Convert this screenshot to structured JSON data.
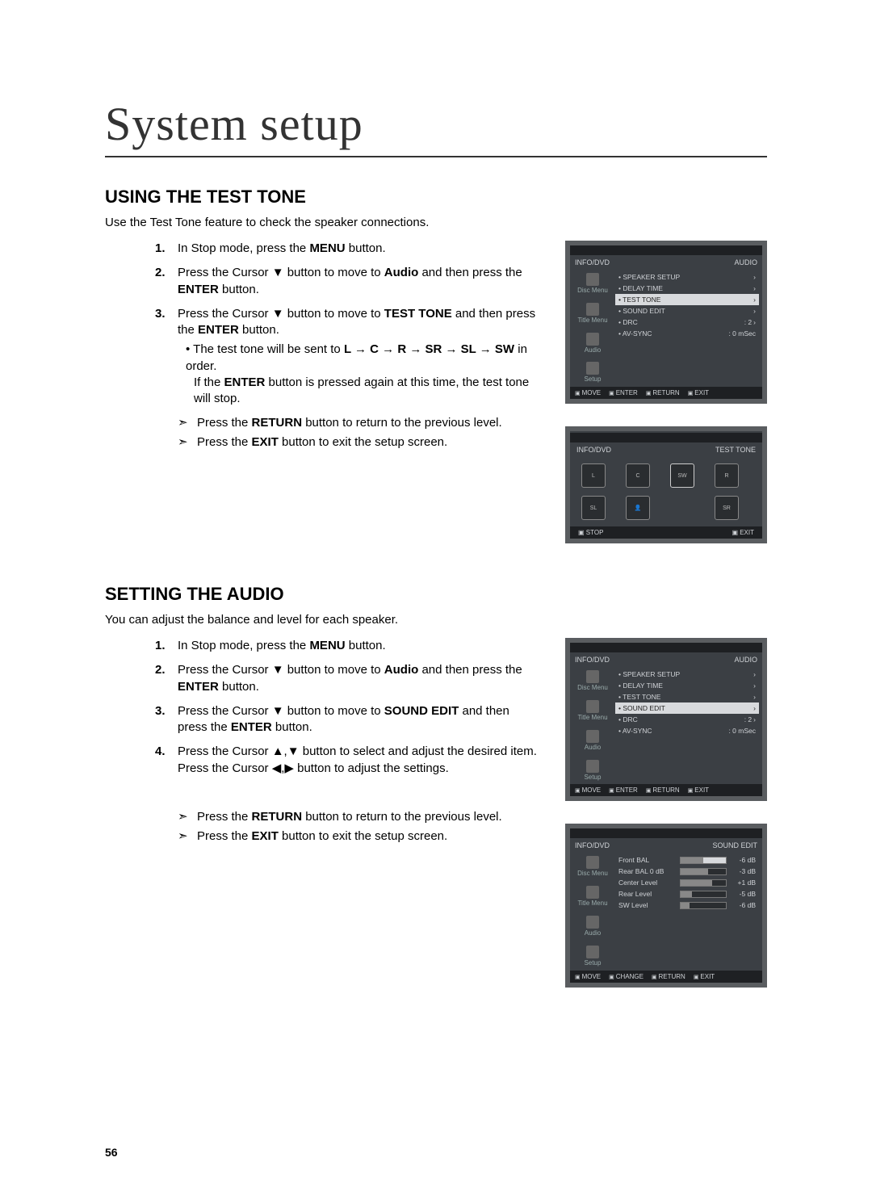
{
  "page": {
    "title": "System setup",
    "number": "56"
  },
  "section1": {
    "heading": "USING THE TEST TONE",
    "lead": "Use the Test Tone feature to check the speaker connections.",
    "steps": {
      "s1_a": "In Stop mode, press the ",
      "s1_b": "MENU",
      "s1_c": " button.",
      "s2_a": "Press the Cursor ▼ button to move to ",
      "s2_b": "Audio",
      "s2_c": " and then press the ",
      "s2_d": "ENTER",
      "s2_e": " button.",
      "s3_a": "Press the Cursor ▼ button to move to ",
      "s3_b": "TEST TONE",
      "s3_c": " and then press the ",
      "s3_d": "ENTER",
      "s3_e": " button.",
      "sub_a": "The test tone will be sent to ",
      "sub_b": "L → C → R → SR → SL → SW",
      "sub_c": " in order.",
      "sub2_a": "If the ",
      "sub2_b": "ENTER",
      "sub2_c": " button is pressed again at this time, the test tone will stop."
    },
    "notes": {
      "n1_a": "Press the ",
      "n1_b": "RETURN",
      "n1_c": " button to return to the previous level.",
      "n2_a": "Press the ",
      "n2_b": "EXIT",
      "n2_c": " button to exit the setup screen."
    }
  },
  "section2": {
    "heading": "SETTING THE AUDIO",
    "lead": "You can adjust the balance and level for each speaker.",
    "steps": {
      "s1_a": "In Stop mode, press the ",
      "s1_b": "MENU",
      "s1_c": " button.",
      "s2_a": "Press the Cursor ▼ button to move to ",
      "s2_b": "Audio",
      "s2_c": " and then press the ",
      "s2_d": "ENTER",
      "s2_e": " button.",
      "s3_a": "Press the Cursor ▼ button to move to ",
      "s3_b": "SOUND EDIT",
      "s3_c": " and then press the ",
      "s3_d": "ENTER",
      "s3_e": " button.",
      "s4": "Press the Cursor ▲,▼ button to select and adjust the desired item. Press the Cursor ◀,▶ button to adjust the settings."
    },
    "notes": {
      "n1_a": "Press the ",
      "n1_b": "RETURN",
      "n1_c": " button to return to the previous level.",
      "n2_a": "Press the ",
      "n2_b": "EXIT",
      "n2_c": " button to exit the setup screen."
    }
  },
  "menu1": {
    "info": "INFO/DVD",
    "audio": "AUDIO",
    "side": [
      "Disc Menu",
      "Title Menu",
      "Audio",
      "Setup"
    ],
    "rows": [
      {
        "label": "• SPEAKER SETUP",
        "val": "",
        "hi": false,
        "arrow": true
      },
      {
        "label": "• DELAY TIME",
        "val": "",
        "hi": false,
        "arrow": true
      },
      {
        "label": "• TEST TONE",
        "val": "",
        "hi": true,
        "arrow": true
      },
      {
        "label": "• SOUND EDIT",
        "val": "",
        "hi": false,
        "arrow": true
      },
      {
        "label": "• DRC",
        "val": ": 2",
        "hi": false,
        "arrow": true
      },
      {
        "label": "• AV-SYNC",
        "val": ": 0 mSec",
        "hi": false,
        "arrow": false
      }
    ],
    "foot": [
      "MOVE",
      "ENTER",
      "RETURN",
      "EXIT"
    ]
  },
  "tone": {
    "info": "INFO/DVD",
    "label": "TEST TONE",
    "foot_stop": "STOP",
    "foot_exit": "EXIT"
  },
  "menu2": {
    "info": "INFO/DVD",
    "audio": "AUDIO",
    "side": [
      "Disc Menu",
      "Title Menu",
      "Audio",
      "Setup"
    ],
    "rows": [
      {
        "label": "• SPEAKER SETUP",
        "val": "",
        "hi": false,
        "arrow": true
      },
      {
        "label": "• DELAY TIME",
        "val": "",
        "hi": false,
        "arrow": true
      },
      {
        "label": "• TEST TONE",
        "val": "",
        "hi": false,
        "arrow": true
      },
      {
        "label": "• SOUND EDIT",
        "val": "",
        "hi": true,
        "arrow": true
      },
      {
        "label": "• DRC",
        "val": ": 2",
        "hi": false,
        "arrow": true
      },
      {
        "label": "• AV-SYNC",
        "val": ": 0 mSec",
        "hi": false,
        "arrow": false
      }
    ],
    "foot": [
      "MOVE",
      "ENTER",
      "RETURN",
      "EXIT"
    ]
  },
  "edit": {
    "info": "INFO/DVD",
    "title": "SOUND EDIT",
    "side": [
      "Disc Menu",
      "Title Menu",
      "Audio",
      "Setup"
    ],
    "rows": [
      {
        "label": "Front BAL",
        "val": "-6 dB",
        "hi": true,
        "fill": 50
      },
      {
        "label": "Rear BAL 0 dB",
        "val": "-3 dB",
        "hi": false,
        "fill": 60
      },
      {
        "label": "Center Level",
        "val": "+1 dB",
        "hi": false,
        "fill": 70
      },
      {
        "label": "Rear Level",
        "val": "-5 dB",
        "hi": false,
        "fill": 25
      },
      {
        "label": "SW Level",
        "val": "-6 dB",
        "hi": false,
        "fill": 20
      }
    ],
    "foot": [
      "MOVE",
      "CHANGE",
      "RETURN",
      "EXIT"
    ]
  }
}
